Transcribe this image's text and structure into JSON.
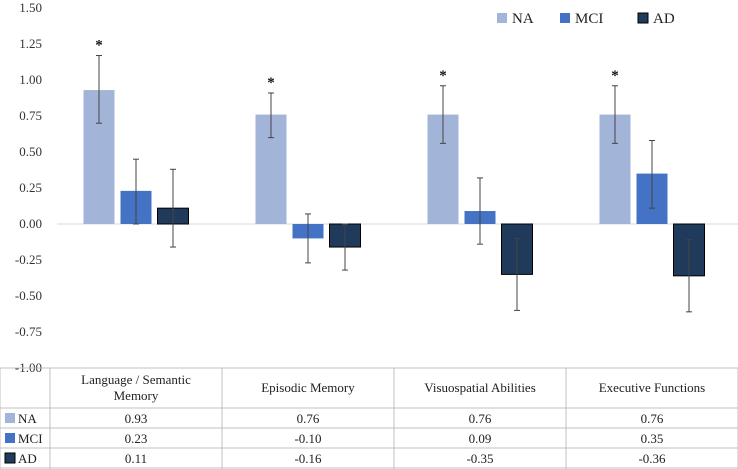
{
  "chart_data": {
    "type": "bar",
    "title": "",
    "xlabel": "",
    "ylabel": "",
    "ylim": [
      -1.0,
      1.5
    ],
    "yticks": [
      "1.50",
      "1.25",
      "1.00",
      "0.75",
      "0.50",
      "0.25",
      "0.00",
      "-0.25",
      "-0.50",
      "-0.75",
      "-1.00"
    ],
    "categories": [
      [
        "Language / Semantic",
        "Memory"
      ],
      [
        "Episodic Memory"
      ],
      [
        "Visuospatial Abilities"
      ],
      [
        "Executive Functions"
      ]
    ],
    "series": [
      {
        "name": "NA",
        "color": "#a3b4d9",
        "border": "#a3b4d9",
        "values": [
          0.93,
          0.76,
          0.76,
          0.76
        ],
        "labels": [
          "0.93",
          "0.76",
          "0.76",
          "0.76"
        ],
        "err_low": [
          0.7,
          0.6,
          0.56,
          0.56
        ],
        "err_high": [
          1.17,
          0.91,
          0.96,
          0.96
        ]
      },
      {
        "name": "MCI",
        "color": "#4472c4",
        "border": "#4472c4",
        "values": [
          0.23,
          -0.1,
          0.09,
          0.35
        ],
        "labels": [
          "0.23",
          "-0.10",
          "0.09",
          "0.35"
        ],
        "err_low": [
          0.0,
          -0.27,
          -0.14,
          0.11
        ],
        "err_high": [
          0.45,
          0.07,
          0.32,
          0.58
        ]
      },
      {
        "name": "AD",
        "color": "#1f3a5a",
        "border": "#000000",
        "values": [
          0.11,
          -0.16,
          -0.35,
          -0.36
        ],
        "labels": [
          "0.11",
          "-0.16",
          "-0.35",
          "-0.36"
        ],
        "err_low": [
          -0.16,
          -0.32,
          -0.6,
          -0.61
        ],
        "err_high": [
          0.38,
          0.0,
          -0.1,
          -0.11
        ]
      }
    ],
    "significance": [
      "*",
      "*",
      "*",
      "*"
    ],
    "legend": {
      "position": "top-right",
      "entries": [
        "NA",
        "MCI",
        "AD"
      ]
    },
    "grid": false
  }
}
